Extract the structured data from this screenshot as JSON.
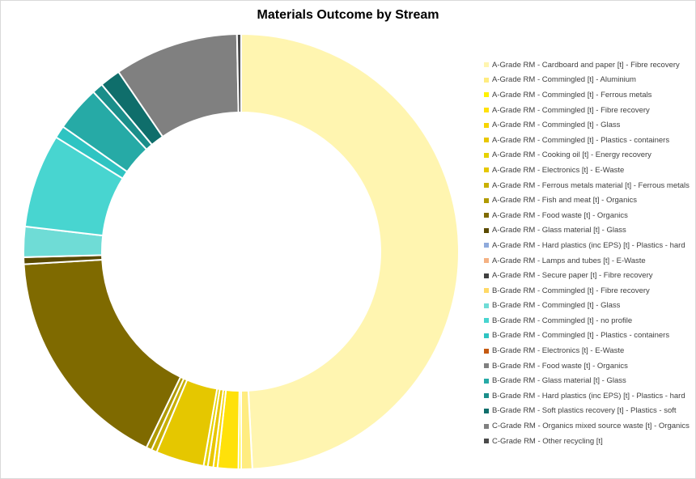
{
  "chart_data": {
    "type": "pie",
    "title": "Materials Outcome by Stream",
    "legend_position": "right",
    "hole": true,
    "series": [
      {
        "name": "A-Grade RM - Cardboard and paper [t] - Fibre recovery",
        "value": 48.0,
        "color": "#fff5b0"
      },
      {
        "name": "A-Grade RM - Commingled [t] - Aluminium",
        "value": 0.8,
        "color": "#ffec80"
      },
      {
        "name": "A-Grade RM - Commingled [t] - Ferrous metals",
        "value": 0.2,
        "color": "#fff200"
      },
      {
        "name": "A-Grade RM - Commingled [t] - Fibre recovery",
        "value": 1.5,
        "color": "#ffe10a"
      },
      {
        "name": "A-Grade RM - Commingled [t] - Glass",
        "value": 0.3,
        "color": "#f7d500"
      },
      {
        "name": "A-Grade RM - Commingled [t] - Plastics - containers",
        "value": 0.4,
        "color": "#e8c600"
      },
      {
        "name": "A-Grade RM - Cooking oil [t] - Energy recovery",
        "value": 0.3,
        "color": "#e6d200"
      },
      {
        "name": "A-Grade RM - Electronics [t] - E-Waste",
        "value": 3.5,
        "color": "#e5c700"
      },
      {
        "name": "A-Grade RM - Ferrous metals material [t] - Ferrous metals",
        "value": 0.4,
        "color": "#c9b000"
      },
      {
        "name": "A-Grade RM - Fish and meat [t] - Organics",
        "value": 0.4,
        "color": "#b09a00"
      },
      {
        "name": "A-Grade RM - Food waste [t] - Organics",
        "value": 16.5,
        "color": "#7f6a00"
      },
      {
        "name": "A-Grade RM - Glass material [t] - Glass",
        "value": 0.5,
        "color": "#5a4a00"
      },
      {
        "name": "A-Grade RM - Hard plastics (inc EPS) [t] - Plastics - hard",
        "value": 0.0,
        "color": "#8faadc"
      },
      {
        "name": "A-Grade RM - Lamps and tubes [t] - E-Waste",
        "value": 0.0,
        "color": "#f4b183"
      },
      {
        "name": "A-Grade RM - Secure paper [t] - Fibre recovery",
        "value": 0.0,
        "color": "#404040"
      },
      {
        "name": "B-Grade RM - Commingled [t] - Fibre recovery",
        "value": 0.0,
        "color": "#ffd966"
      },
      {
        "name": "B-Grade RM - Commingled [t] - Glass",
        "value": 2.2,
        "color": "#6fdcd6"
      },
      {
        "name": "B-Grade RM - Commingled [t] - no profile",
        "value": 6.8,
        "color": "#48d5d0"
      },
      {
        "name": "B-Grade RM - Commingled [t] - Plastics - containers",
        "value": 0.9,
        "color": "#2fc4c2"
      },
      {
        "name": "B-Grade RM - Electronics [t] - E-Waste",
        "value": 0.0,
        "color": "#c55a11"
      },
      {
        "name": "B-Grade RM - Food waste [t] - Organics",
        "value": 0.0,
        "color": "#808080"
      },
      {
        "name": "B-Grade RM - Glass material [t] - Glass",
        "value": 3.3,
        "color": "#26aaa6"
      },
      {
        "name": "B-Grade RM - Hard plastics (inc EPS) [t] - Plastics - hard",
        "value": 0.8,
        "color": "#1a8e8a"
      },
      {
        "name": "B-Grade RM - Soft plastics recovery [t] - Plastics - soft",
        "value": 1.5,
        "color": "#0f6e6b"
      },
      {
        "name": "C-Grade RM - Organics mixed source waste [t] - Organics",
        "value": 9.0,
        "color": "#808080"
      },
      {
        "name": "C-Grade RM - Other recycling [t]",
        "value": 0.3,
        "color": "#4a4a4a"
      }
    ]
  }
}
